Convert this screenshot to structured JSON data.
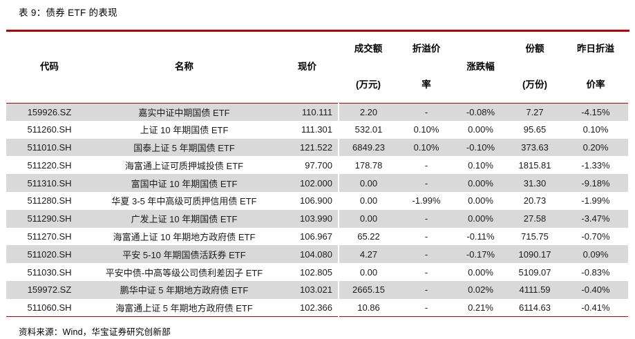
{
  "page": {
    "title": "表 9：债券 ETF 的表现",
    "source_note": "资料来源：Wind，华宝证券研究创新部"
  },
  "colors": {
    "accent_red": "#C00000",
    "row_stripe_gray": "#D9D9D9"
  },
  "table": {
    "columns": [
      {
        "id": "code",
        "line1": "代码",
        "line2": ""
      },
      {
        "id": "name",
        "line1": "名称",
        "line2": ""
      },
      {
        "id": "price",
        "line1": "现价",
        "line2": ""
      },
      {
        "id": "turnover",
        "line1": "成交额",
        "line2": "(万元)"
      },
      {
        "id": "premium-rate",
        "line1": "折溢价",
        "line2": "率"
      },
      {
        "id": "change-pct",
        "line1": "涨跌幅",
        "line2": ""
      },
      {
        "id": "shares",
        "line1": "份额",
        "line2": "(万份)"
      },
      {
        "id": "prev-premium",
        "line1": "昨日折溢",
        "line2": "价率"
      }
    ],
    "rows": [
      [
        "159926.SZ",
        "嘉实中证中期国债 ETF",
        "110.111",
        "2.20",
        "-",
        "-0.08%",
        "7.27",
        "-4.15%"
      ],
      [
        "511260.SH",
        "上证 10 年期国债 ETF",
        "111.301",
        "532.01",
        "0.10%",
        "0.00%",
        "95.65",
        "0.10%"
      ],
      [
        "511010.SH",
        "国泰上证 5 年期国债 ETF",
        "121.522",
        "6849.23",
        "0.10%",
        "-0.10%",
        "373.63",
        "0.20%"
      ],
      [
        "511220.SH",
        "海富通上证可质押城投债 ETF",
        "97.700",
        "178.78",
        "-",
        "0.10%",
        "1815.81",
        "-1.33%"
      ],
      [
        "511310.SH",
        "富国中证 10 年期国债 ETF",
        "102.000",
        "0.00",
        "-",
        "0.00%",
        "31.30",
        "-9.18%"
      ],
      [
        "511280.SH",
        "华夏 3-5 年中高级可质押信用债 ETF",
        "106.900",
        "0.00",
        "-1.99%",
        "0.00%",
        "20.73",
        "-1.99%"
      ],
      [
        "511290.SH",
        "广发上证 10 年期国债 ETF",
        "103.990",
        "0.00",
        "-",
        "0.00%",
        "27.58",
        "-3.47%"
      ],
      [
        "511270.SH",
        "海富通上证 10 年期地方政府债 ETF",
        "106.967",
        "65.22",
        "-",
        "-0.11%",
        "715.75",
        "-0.70%"
      ],
      [
        "511020.SH",
        "平安 5-10 年期国债活跃券 ETF",
        "104.080",
        "4.27",
        "-",
        "-0.17%",
        "1090.17",
        "0.09%"
      ],
      [
        "511030.SH",
        "平安中债-中高等级公司债利差因子 ETF",
        "102.805",
        "0.00",
        "-",
        "0.00%",
        "5109.07",
        "-0.83%"
      ],
      [
        "159972.SZ",
        "鹏华中证 5 年期地方政府债 ETF",
        "103.021",
        "2665.15",
        "-",
        "0.02%",
        "4111.59",
        "-0.40%"
      ],
      [
        "511060.SH",
        "海富通上证 5 年期地方政府债 ETF",
        "102.366",
        "10.86",
        "-",
        "0.21%",
        "6114.63",
        "-0.41%"
      ]
    ]
  }
}
